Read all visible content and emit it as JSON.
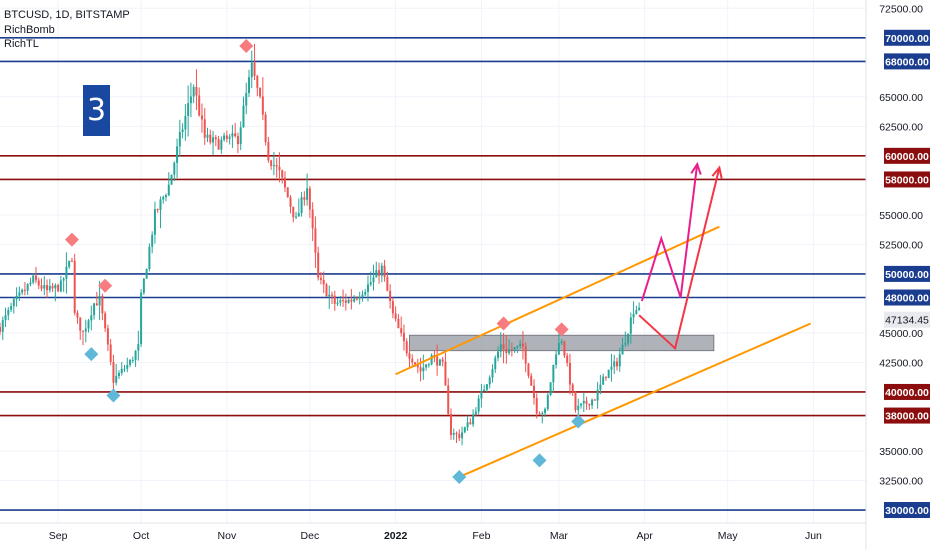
{
  "legend": {
    "symbol": "BTCUSD, 1D, BITSTAMP",
    "indicator_1": "RichBomb",
    "indicator_2": "RichTL"
  },
  "badge_number": "3",
  "colors": {
    "up": "#26a69a",
    "down": "#ef5350",
    "blue_level": "#1a3d8f",
    "red_level": "#8b0d0d",
    "channel": "#ff9800",
    "zone": "#9598a1",
    "arrow_pink": "#e91e8c",
    "arrow_red": "#f23645",
    "diamond_red": "#f77c80",
    "diamond_blue": "#5fb8d8",
    "axis_text": "#131722",
    "price_tag": "#e8eaed"
  },
  "chart_data": {
    "type": "candlestick",
    "title": "BTCUSD, 1D, BITSTAMP",
    "x_range": [
      "2021-08-11",
      "2022-06-20"
    ],
    "y_range": [
      28900,
      73200
    ],
    "y_ticks": [
      {
        "value": 72500,
        "label": "72500.00"
      },
      {
        "value": 65000,
        "label": "65000.00"
      },
      {
        "value": 62500,
        "label": "62500.00"
      },
      {
        "value": 55000,
        "label": "55000.00"
      },
      {
        "value": 52500,
        "label": "52500.00"
      },
      {
        "value": 45000,
        "label": "45000.00"
      },
      {
        "value": 42500,
        "label": "42500.00"
      },
      {
        "value": 35000,
        "label": "35000.00"
      },
      {
        "value": 32500,
        "label": "32500.00"
      }
    ],
    "x_ticks": [
      {
        "date": "2021-09-01",
        "label": "Sep"
      },
      {
        "date": "2021-10-01",
        "label": "Oct"
      },
      {
        "date": "2021-11-01",
        "label": "Nov"
      },
      {
        "date": "2021-12-01",
        "label": "Dec"
      },
      {
        "date": "2022-01-01",
        "label": "2022"
      },
      {
        "date": "2022-02-01",
        "label": "Feb"
      },
      {
        "date": "2022-03-01",
        "label": "Mar"
      },
      {
        "date": "2022-04-01",
        "label": "Apr"
      },
      {
        "date": "2022-05-01",
        "label": "May"
      },
      {
        "date": "2022-06-01",
        "label": "Jun"
      }
    ],
    "levels": [
      {
        "value": 70000,
        "label": "70000.00",
        "kind": "blue"
      },
      {
        "value": 68000,
        "label": "68000.00",
        "kind": "blue"
      },
      {
        "value": 60000,
        "label": "60000.00",
        "kind": "red"
      },
      {
        "value": 58000,
        "label": "58000.00",
        "kind": "red"
      },
      {
        "value": 50000,
        "label": "50000.00",
        "kind": "blue"
      },
      {
        "value": 48000,
        "label": "48000.00",
        "kind": "blue"
      },
      {
        "value": 40000,
        "label": "40000.00",
        "kind": "red"
      },
      {
        "value": 38000,
        "label": "38000.00",
        "kind": "red"
      },
      {
        "value": 30000,
        "label": "30000.00",
        "kind": "blue"
      }
    ],
    "last_price": {
      "value": 47134.45,
      "label": "47134.45"
    },
    "path_points": [
      [
        "2021-08-11",
        45500
      ],
      [
        "2021-08-16",
        47500
      ],
      [
        "2021-08-23",
        49500
      ],
      [
        "2021-08-28",
        48500
      ],
      [
        "2021-09-02",
        49000
      ],
      [
        "2021-09-06",
        51500
      ],
      [
        "2021-09-07",
        46500
      ],
      [
        "2021-09-10",
        45000
      ],
      [
        "2021-09-14",
        47500
      ],
      [
        "2021-09-16",
        47800
      ],
      [
        "2021-09-21",
        41000
      ],
      [
        "2021-09-27",
        42500
      ],
      [
        "2021-09-30",
        43800
      ],
      [
        "2021-10-01",
        48000
      ],
      [
        "2021-10-06",
        55000
      ],
      [
        "2021-10-11",
        57500
      ],
      [
        "2021-10-15",
        61500
      ],
      [
        "2021-10-20",
        66000
      ],
      [
        "2021-10-24",
        61500
      ],
      [
        "2021-10-28",
        61000
      ],
      [
        "2021-11-01",
        61300
      ],
      [
        "2021-11-05",
        61500
      ],
      [
        "2021-11-10",
        67500
      ],
      [
        "2021-11-13",
        64500
      ],
      [
        "2021-11-16",
        60000
      ],
      [
        "2021-11-20",
        58500
      ],
      [
        "2021-11-26",
        54500
      ],
      [
        "2021-11-30",
        57500
      ],
      [
        "2021-12-04",
        49500
      ],
      [
        "2021-12-10",
        47500
      ],
      [
        "2021-12-16",
        47800
      ],
      [
        "2021-12-22",
        49000
      ],
      [
        "2021-12-27",
        50500
      ],
      [
        "2021-12-31",
        46500
      ],
      [
        "2022-01-05",
        43500
      ],
      [
        "2022-01-10",
        41800
      ],
      [
        "2022-01-14",
        43000
      ],
      [
        "2022-01-18",
        42200
      ],
      [
        "2022-01-21",
        36500
      ],
      [
        "2022-01-24",
        36300
      ],
      [
        "2022-01-28",
        37500
      ],
      [
        "2022-02-04",
        41500
      ],
      [
        "2022-02-08",
        44000
      ],
      [
        "2022-02-10",
        43500
      ],
      [
        "2022-02-16",
        43800
      ],
      [
        "2022-02-21",
        38500
      ],
      [
        "2022-02-24",
        38300
      ],
      [
        "2022-02-28",
        43500
      ],
      [
        "2022-03-02",
        44500
      ],
      [
        "2022-03-07",
        38500
      ],
      [
        "2022-03-14",
        39500
      ],
      [
        "2022-03-18",
        41500
      ],
      [
        "2022-03-22",
        42500
      ],
      [
        "2022-03-25",
        44500
      ],
      [
        "2022-03-28",
        47000
      ],
      [
        "2022-03-30",
        47134
      ]
    ],
    "channel_upper": [
      [
        "2022-01-01",
        41500
      ],
      [
        "2022-04-28",
        54000
      ]
    ],
    "channel_lower": [
      [
        "2022-01-24",
        32800
      ],
      [
        "2022-05-31",
        45800
      ]
    ],
    "zone": {
      "x": [
        "2022-01-06",
        "2022-04-26"
      ],
      "y": [
        43500,
        44800
      ]
    },
    "projection_pink": [
      [
        "2022-03-31",
        47700
      ],
      [
        "2022-04-07",
        53000
      ],
      [
        "2022-04-14",
        48000
      ],
      [
        "2022-04-20",
        59300
      ]
    ],
    "projection_red": [
      [
        "2022-03-30",
        46500
      ],
      [
        "2022-04-12",
        43700
      ],
      [
        "2022-04-28",
        59000
      ]
    ],
    "diamonds_red": [
      [
        "2021-09-06",
        52900
      ],
      [
        "2021-09-18",
        49000
      ],
      [
        "2021-11-08",
        69300
      ],
      [
        "2022-02-09",
        45800
      ],
      [
        "2022-03-02",
        45300
      ]
    ],
    "diamonds_blue": [
      [
        "2021-09-13",
        43200
      ],
      [
        "2021-09-21",
        39700
      ],
      [
        "2022-01-24",
        32800
      ],
      [
        "2022-02-22",
        34200
      ],
      [
        "2022-03-08",
        37500
      ]
    ]
  }
}
